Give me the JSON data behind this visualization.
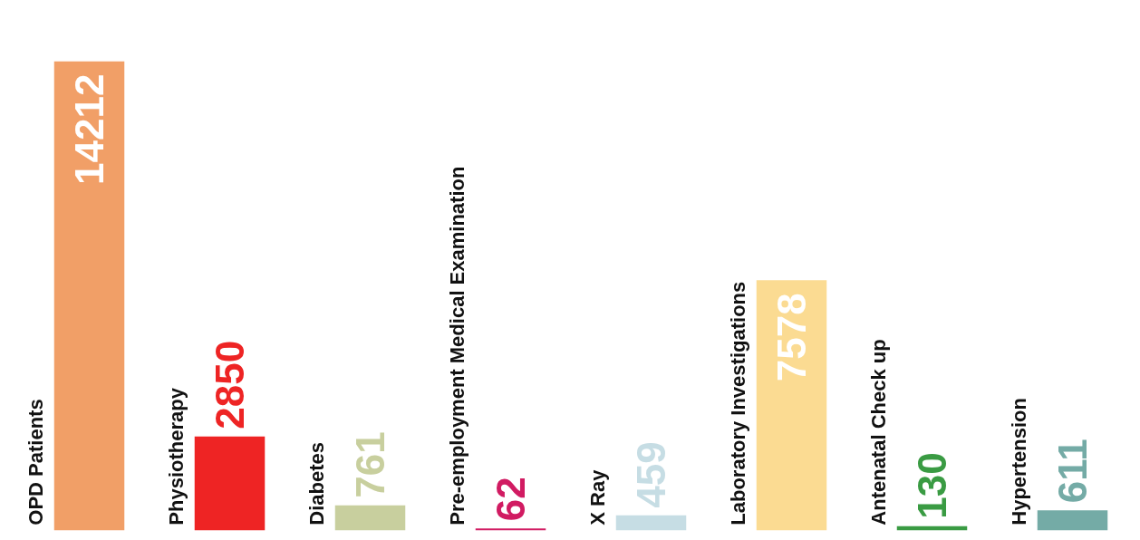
{
  "chart_data": {
    "type": "bar",
    "categories": [
      "OPD Patients",
      "Physiotherapy",
      "Diabetes",
      "Pre-employment Medical Examination",
      "X Ray",
      "Laboratory Investigations",
      "Antenatal Check up",
      "Hypertension"
    ],
    "values": [
      14212,
      2850,
      761,
      62,
      459,
      7578,
      130,
      611
    ],
    "colors": [
      "#f19f67",
      "#ee2424",
      "#c8cf9e",
      "#d11b62",
      "#c6dde4",
      "#fbdb92",
      "#3a9b43",
      "#74aba6"
    ],
    "data_labels": true
  }
}
